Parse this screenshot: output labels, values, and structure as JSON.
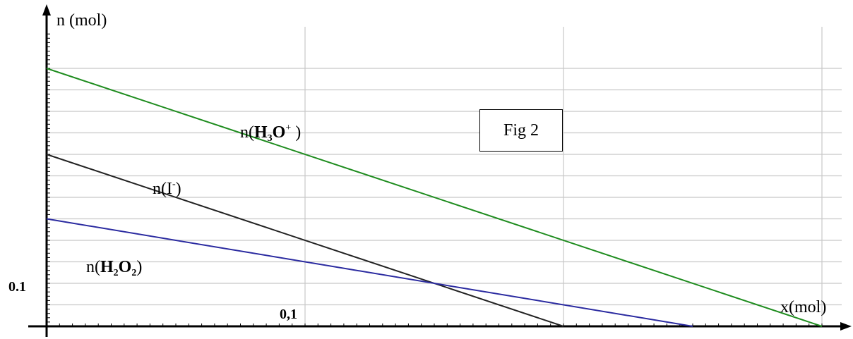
{
  "figure_label": "Fig 2",
  "chart_data": {
    "type": "line",
    "ylabel": "n (mol)",
    "xlabel": "x(mol)",
    "x_tick_label": "0,1",
    "y_tick_label": "0.1",
    "xlim": [
      0,
      0.3
    ],
    "ylim": [
      0,
      0.6
    ],
    "x_grid_step": 0.1,
    "y_grid_step": 0.05,
    "grid": true,
    "series": [
      {
        "name": "n(H3O+)",
        "label_parts": [
          "n(",
          "H",
          "3",
          "O",
          "+",
          " )"
        ],
        "color": "#1e8c1e",
        "x": [
          0,
          0.3
        ],
        "y": [
          0.6,
          0
        ]
      },
      {
        "name": "n(I-)",
        "label_parts": [
          "n(",
          "I",
          "-",
          ")"
        ],
        "color": "#222222",
        "x": [
          0,
          0.2
        ],
        "y": [
          0.4,
          0
        ]
      },
      {
        "name": "n(H2O2)",
        "label_parts": [
          "n(",
          "H",
          "2",
          "O",
          "2",
          ")"
        ],
        "color": "#2a2aa0",
        "x": [
          0,
          0.25
        ],
        "y": [
          0.25,
          0
        ]
      }
    ]
  }
}
